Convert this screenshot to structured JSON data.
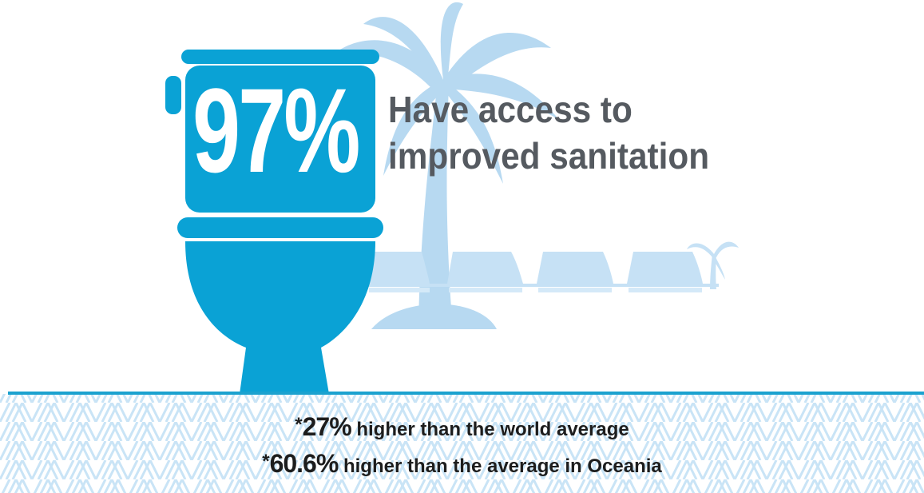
{
  "stat": {
    "value": "97%",
    "headline_line1": "Have access to",
    "headline_line2": "improved sanitation"
  },
  "notes": [
    {
      "star": "*",
      "figure": "27%",
      "text": " higher than the world average"
    },
    {
      "star": "*",
      "figure": "60.6%",
      "text": " higher than the average in Oceania"
    }
  ],
  "colors": {
    "toilet": "#0aa2d5",
    "scenery": "#b7d9f1",
    "text": "#555a60",
    "band_line": "#1ba2cf",
    "pattern": "#c9e4f6"
  },
  "icons": [
    "toilet-icon",
    "palm-tree-icon",
    "bungalow-icon"
  ]
}
